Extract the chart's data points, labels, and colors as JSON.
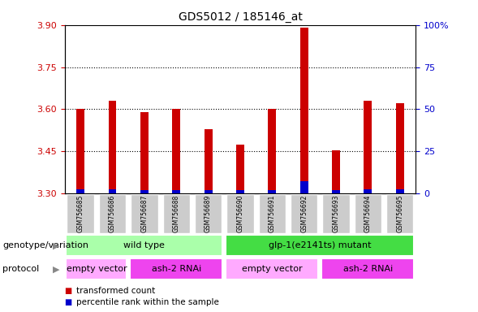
{
  "title": "GDS5012 / 185146_at",
  "samples": [
    "GSM756685",
    "GSM756686",
    "GSM756687",
    "GSM756688",
    "GSM756689",
    "GSM756690",
    "GSM756691",
    "GSM756692",
    "GSM756693",
    "GSM756694",
    "GSM756695"
  ],
  "bar_base": 3.3,
  "red_values": [
    3.6,
    3.63,
    3.59,
    3.6,
    3.53,
    3.475,
    3.6,
    3.89,
    3.455,
    3.63,
    3.62
  ],
  "blue_values": [
    3.315,
    3.315,
    3.313,
    3.313,
    3.312,
    3.312,
    3.313,
    3.343,
    3.313,
    3.315,
    3.314
  ],
  "ylim": [
    3.3,
    3.9
  ],
  "yticks_left": [
    3.3,
    3.45,
    3.6,
    3.75,
    3.9
  ],
  "yticks_right": [
    0,
    25,
    50,
    75,
    100
  ],
  "ytick_right_labels": [
    "0",
    "25",
    "50",
    "75",
    "100%"
  ],
  "bar_color_red": "#cc0000",
  "bar_color_blue": "#0000cc",
  "bar_width": 0.25,
  "bg_color": "#ffffff",
  "grid_yticks": [
    3.45,
    3.6,
    3.75
  ],
  "genotype_groups": [
    {
      "label": "wild type",
      "start": 0,
      "end": 4,
      "color": "#aaffaa"
    },
    {
      "label": "glp-1(e2141ts) mutant",
      "start": 5,
      "end": 10,
      "color": "#44dd44"
    }
  ],
  "proto_data": [
    {
      "label": "empty vector",
      "start": 0,
      "end": 1,
      "color": "#ffaaff"
    },
    {
      "label": "ash-2 RNAi",
      "start": 2,
      "end": 4,
      "color": "#ee44ee"
    },
    {
      "label": "empty vector",
      "start": 5,
      "end": 7,
      "color": "#ffaaff"
    },
    {
      "label": "ash-2 RNAi",
      "start": 8,
      "end": 10,
      "color": "#ee44ee"
    }
  ],
  "legend_red_label": "transformed count",
  "legend_blue_label": "percentile rank within the sample",
  "genotype_label": "genotype/variation",
  "protocol_label": "protocol",
  "left_ytick_color": "#cc0000",
  "right_ytick_color": "#0000cc",
  "sample_box_color": "#cccccc"
}
